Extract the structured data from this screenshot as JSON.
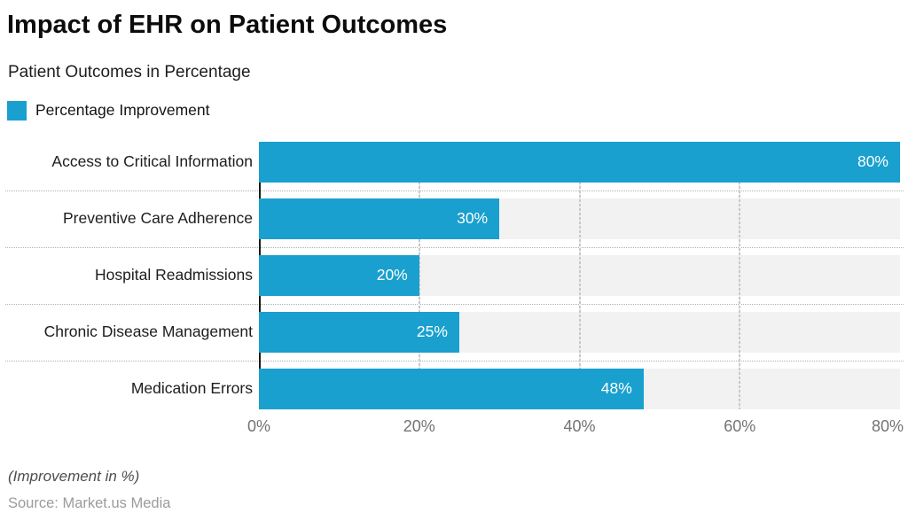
{
  "header": {
    "title": "Impact of EHR on Patient Outcomes",
    "subtitle": "Patient Outcomes in Percentage"
  },
  "legend": {
    "label": "Percentage Improvement",
    "color": "#19a0ce"
  },
  "chart_data": {
    "type": "bar",
    "orientation": "horizontal",
    "title": "Impact of EHR on Patient Outcomes",
    "subtitle": "Patient Outcomes in Percentage",
    "series_name": "Percentage Improvement",
    "categories": [
      "Access to Critical Information",
      "Preventive Care Adherence",
      "Hospital Readmissions",
      "Chronic Disease Management",
      "Medication Errors"
    ],
    "values": [
      80,
      30,
      20,
      25,
      48
    ],
    "value_suffix": "%",
    "xlim": [
      0,
      80
    ],
    "gridlines": [
      20,
      40,
      60
    ],
    "ticks": [
      {
        "label": "0%",
        "value": 0
      },
      {
        "label": "20%",
        "value": 20
      },
      {
        "label": "40%",
        "value": 40
      },
      {
        "label": "60%",
        "value": 60
      },
      {
        "label": "80%",
        "value": 80
      }
    ],
    "bar_color": "#19a0ce",
    "track_color": "#f2f2f2",
    "xlabel": "(Improvement in %)",
    "legend_position": "top-left",
    "grid": true
  },
  "footer": {
    "note": "(Improvement in %)",
    "source": "Source: Market.us Media"
  }
}
